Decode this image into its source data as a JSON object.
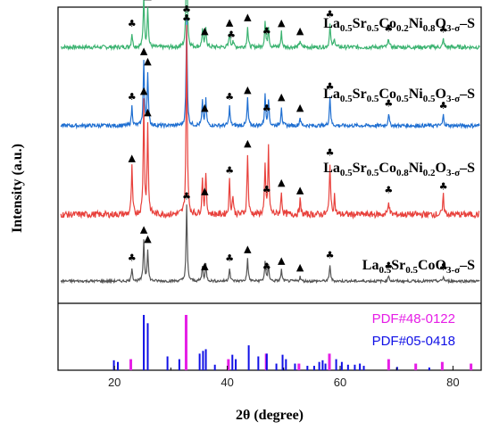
{
  "chart_data": {
    "type": "line",
    "xlabel": "2θ (degree)",
    "ylabel": "Intensity (a.u.)",
    "xlim": [
      10,
      85
    ],
    "xticks": [
      20,
      40,
      60,
      80
    ],
    "grid": false,
    "series": [
      {
        "label_parts": [
          [
            "La",
            "n"
          ],
          [
            "0.5",
            "s"
          ],
          [
            "Sr",
            "n"
          ],
          [
            "0.5",
            "s"
          ],
          [
            "Co",
            "n"
          ],
          [
            "0.2",
            "s"
          ],
          [
            "Ni",
            "n"
          ],
          [
            "0.8",
            "s"
          ],
          [
            "O",
            "n"
          ],
          [
            "3-σ",
            "s"
          ],
          [
            "–S",
            "n"
          ]
        ],
        "color": "#3cb371",
        "baseline": 0.045,
        "scale": 0.13,
        "peaks": [
          [
            23.1,
            0.12
          ],
          [
            25.2,
            0.45
          ],
          [
            25.9,
            0.35
          ],
          [
            32.8,
            1.0
          ],
          [
            35.6,
            0.15
          ],
          [
            36.2,
            0.17
          ],
          [
            40.4,
            0.13
          ],
          [
            41.0,
            0.06
          ],
          [
            43.6,
            0.18
          ],
          [
            46.7,
            0.22
          ],
          [
            47.3,
            0.18
          ],
          [
            49.6,
            0.13
          ],
          [
            52.9,
            0.06
          ],
          [
            58.2,
            0.2
          ],
          [
            59.0,
            0.08
          ],
          [
            68.6,
            0.08
          ],
          [
            78.3,
            0.07
          ]
        ]
      },
      {
        "label_parts": [
          [
            "La",
            "n"
          ],
          [
            "0.5",
            "s"
          ],
          [
            "Sr",
            "n"
          ],
          [
            "0.5",
            "s"
          ],
          [
            "Co",
            "n"
          ],
          [
            "0.5",
            "s"
          ],
          [
            "Ni",
            "n"
          ],
          [
            "0.5",
            "s"
          ],
          [
            "O",
            "n"
          ],
          [
            "3-σ",
            "s"
          ],
          [
            "–S",
            "n"
          ]
        ],
        "color": "#1f6fd1",
        "baseline": 0.315,
        "scale": 0.12,
        "peaks": [
          [
            23.1,
            0.18
          ],
          [
            25.2,
            0.6
          ],
          [
            25.9,
            0.5
          ],
          [
            32.8,
            1.0
          ],
          [
            35.6,
            0.22
          ],
          [
            36.2,
            0.24
          ],
          [
            40.4,
            0.18
          ],
          [
            43.6,
            0.25
          ],
          [
            46.7,
            0.28
          ],
          [
            47.3,
            0.25
          ],
          [
            49.6,
            0.18
          ],
          [
            52.9,
            0.08
          ],
          [
            58.2,
            0.28
          ],
          [
            68.6,
            0.12
          ],
          [
            78.3,
            0.1
          ]
        ]
      },
      {
        "label_parts": [
          [
            "La",
            "n"
          ],
          [
            "0.5",
            "s"
          ],
          [
            "Sr",
            "n"
          ],
          [
            "0.5",
            "s"
          ],
          [
            "Co",
            "n"
          ],
          [
            "0.8",
            "s"
          ],
          [
            "Ni",
            "n"
          ],
          [
            "0.2",
            "s"
          ],
          [
            "O",
            "n"
          ],
          [
            "3-σ",
            "s"
          ],
          [
            "–S",
            "n"
          ]
        ],
        "color": "#e8413c",
        "baseline": 0.58,
        "scale": 0.21,
        "peaks": [
          [
            23.1,
            0.25
          ],
          [
            25.2,
            0.6
          ],
          [
            25.9,
            0.48
          ],
          [
            32.8,
            1.0
          ],
          [
            35.6,
            0.2
          ],
          [
            36.2,
            0.22
          ],
          [
            40.4,
            0.18
          ],
          [
            41.0,
            0.1
          ],
          [
            43.6,
            0.33
          ],
          [
            46.7,
            0.25
          ],
          [
            47.3,
            0.35
          ],
          [
            49.6,
            0.12
          ],
          [
            52.9,
            0.08
          ],
          [
            58.2,
            0.28
          ],
          [
            59.0,
            0.1
          ],
          [
            68.6,
            0.08
          ],
          [
            78.3,
            0.1
          ]
        ]
      },
      {
        "label_parts": [
          [
            "La",
            "n"
          ],
          [
            "0.5",
            "s"
          ],
          [
            "Sr",
            "n"
          ],
          [
            "0.5",
            "s"
          ],
          [
            "CoO",
            "n"
          ],
          [
            "3-σ",
            "s"
          ],
          [
            "–S",
            "n"
          ]
        ],
        "color": "#555555",
        "baseline": 0.805,
        "scale": 0.085,
        "peaks": [
          [
            23.1,
            0.18
          ],
          [
            25.2,
            0.55
          ],
          [
            25.9,
            0.42
          ],
          [
            32.8,
            1.0
          ],
          [
            35.6,
            0.2
          ],
          [
            36.2,
            0.22
          ],
          [
            40.4,
            0.18
          ],
          [
            43.6,
            0.3
          ],
          [
            46.7,
            0.25
          ],
          [
            47.3,
            0.22
          ],
          [
            49.6,
            0.15
          ],
          [
            52.9,
            0.06
          ],
          [
            58.2,
            0.22
          ],
          [
            68.6,
            0.08
          ],
          [
            78.3,
            0.06
          ]
        ]
      }
    ],
    "markers": [
      {
        "series": 0,
        "items": [
          [
            "c",
            23.1
          ],
          [
            "t",
            25.2
          ],
          [
            "t",
            25.9
          ],
          [
            "c",
            32.8
          ],
          [
            "t",
            36.0
          ],
          [
            "t",
            40.4
          ],
          [
            "c",
            40.7
          ],
          [
            "t",
            43.6
          ],
          [
            "c",
            47.0
          ],
          [
            "t",
            49.6
          ],
          [
            "t",
            52.9
          ],
          [
            "c",
            58.2
          ],
          [
            "c",
            68.6
          ],
          [
            "c",
            78.3
          ]
        ]
      },
      {
        "series": 1,
        "items": [
          [
            "c",
            23.1
          ],
          [
            "t",
            25.2
          ],
          [
            "t",
            25.9
          ],
          [
            "c",
            32.8
          ],
          [
            "t",
            36.0
          ],
          [
            "c",
            40.4
          ],
          [
            "t",
            43.6
          ],
          [
            "c",
            47.0
          ],
          [
            "t",
            49.6
          ],
          [
            "t",
            52.9
          ],
          [
            "c",
            58.2
          ],
          [
            "c",
            68.6
          ],
          [
            "c",
            78.3
          ]
        ]
      },
      {
        "series": 2,
        "items": [
          [
            "t",
            23.1
          ],
          [
            "t",
            25.2
          ],
          [
            "t",
            25.9
          ],
          [
            "c",
            32.8
          ],
          [
            "t",
            36.0
          ],
          [
            "c",
            40.4
          ],
          [
            "t",
            43.6
          ],
          [
            "c",
            47.0
          ],
          [
            "t",
            49.6
          ],
          [
            "t",
            52.9
          ],
          [
            "c",
            58.2
          ],
          [
            "c",
            68.6
          ],
          [
            "c",
            78.3
          ]
        ]
      },
      {
        "series": 3,
        "items": [
          [
            "c",
            23.1
          ],
          [
            "t",
            25.2
          ],
          [
            "t",
            25.9
          ],
          [
            "c",
            32.8
          ],
          [
            "t",
            36.0
          ],
          [
            "c",
            40.4
          ],
          [
            "t",
            43.6
          ],
          [
            "c",
            47.0
          ],
          [
            "t",
            49.6
          ],
          [
            "t",
            52.9
          ],
          [
            "c",
            58.2
          ],
          [
            "c",
            68.6
          ],
          [
            "c",
            78.3
          ]
        ]
      }
    ],
    "marker_symbols": {
      "t": "▲",
      "c": "♣"
    },
    "references": [
      {
        "name": "PDF#48-0122",
        "color": "#e61ee6",
        "sticks": [
          [
            22.9,
            0.2
          ],
          [
            32.7,
            1.0
          ],
          [
            40.2,
            0.2
          ],
          [
            46.9,
            0.3
          ],
          [
            52.7,
            0.12
          ],
          [
            58.1,
            0.3
          ],
          [
            68.6,
            0.2
          ],
          [
            73.4,
            0.12
          ],
          [
            78.1,
            0.15
          ],
          [
            83.2,
            0.12
          ]
        ]
      },
      {
        "name": "PDF#05-0418",
        "color": "#1010e6",
        "sticks": [
          [
            19.9,
            0.18
          ],
          [
            20.6,
            0.15
          ],
          [
            25.2,
            1.0
          ],
          [
            25.9,
            0.85
          ],
          [
            29.4,
            0.25
          ],
          [
            31.5,
            0.2
          ],
          [
            35.1,
            0.3
          ],
          [
            35.7,
            0.35
          ],
          [
            36.2,
            0.38
          ],
          [
            37.8,
            0.1
          ],
          [
            40.9,
            0.28
          ],
          [
            41.5,
            0.2
          ],
          [
            43.8,
            0.45
          ],
          [
            45.5,
            0.25
          ],
          [
            47.0,
            0.3
          ],
          [
            48.7,
            0.12
          ],
          [
            49.8,
            0.28
          ],
          [
            50.4,
            0.2
          ],
          [
            52.0,
            0.12
          ],
          [
            54.2,
            0.08
          ],
          [
            55.4,
            0.08
          ],
          [
            56.3,
            0.15
          ],
          [
            56.9,
            0.18
          ],
          [
            57.4,
            0.12
          ],
          [
            59.3,
            0.2
          ],
          [
            60.3,
            0.15
          ],
          [
            61.4,
            0.1
          ],
          [
            62.6,
            0.1
          ],
          [
            63.5,
            0.12
          ],
          [
            64.2,
            0.08
          ],
          [
            70.1,
            0.06
          ],
          [
            75.8,
            0.05
          ]
        ]
      }
    ]
  }
}
